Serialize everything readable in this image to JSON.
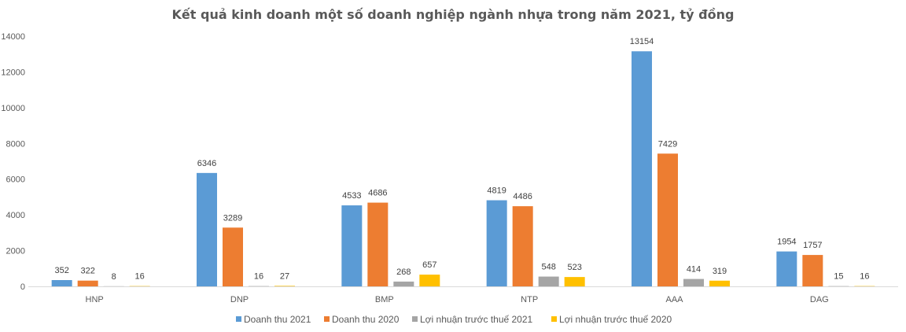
{
  "chart_data": {
    "type": "bar",
    "title": "Kết quả kinh doanh một số doanh nghiệp ngành nhựa trong năm 2021, tỷ đồng",
    "categories": [
      "HNP",
      "DNP",
      "BMP",
      "NTP",
      "AAA",
      "DAG"
    ],
    "series": [
      {
        "name": "Doanh thu 2021",
        "color": "#5B9BD5",
        "values": [
          352,
          6346,
          4533,
          4819,
          13154,
          1954
        ]
      },
      {
        "name": "Doanh thu 2020",
        "color": "#ED7D31",
        "values": [
          322,
          3289,
          4686,
          4486,
          7429,
          1757
        ]
      },
      {
        "name": "Lợi nhuận trước thuế 2021",
        "color": "#A5A5A5",
        "values": [
          8,
          16,
          268,
          548,
          414,
          15
        ]
      },
      {
        "name": "Lợi nhuận trước thuế 2020",
        "color": "#FFC000",
        "values": [
          16,
          27,
          657,
          523,
          319,
          16
        ]
      }
    ],
    "ylim": [
      0,
      14000
    ],
    "yticks": [
      0,
      2000,
      4000,
      6000,
      8000,
      10000,
      12000,
      14000
    ],
    "grid": false,
    "legend": "bottom",
    "xlabel": "",
    "ylabel": ""
  }
}
